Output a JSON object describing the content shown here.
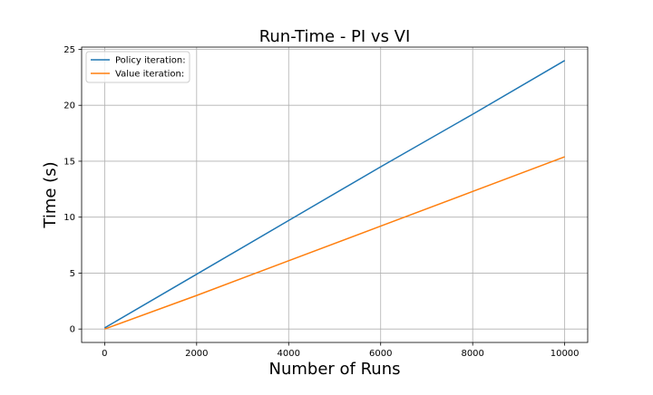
{
  "chart_data": {
    "type": "line",
    "title": "Run-Time - PI vs VI",
    "xlabel": "Number of Runs",
    "ylabel": "Time (s)",
    "xlim": [
      -500,
      10500
    ],
    "ylim": [
      -1.2,
      25.2
    ],
    "xticks": [
      0,
      2000,
      4000,
      6000,
      8000,
      10000
    ],
    "yticks": [
      0,
      5,
      10,
      15,
      20,
      25
    ],
    "grid": true,
    "legend_position": "top-left",
    "series": [
      {
        "name": "Policy iteration:",
        "color": "#1f77b4",
        "x": [
          0,
          2000,
          4000,
          6000,
          8000,
          10000
        ],
        "y": [
          0.1,
          4.9,
          9.7,
          14.5,
          19.2,
          24.0
        ]
      },
      {
        "name": "Value iteration:",
        "color": "#ff7f0e",
        "x": [
          0,
          2000,
          4000,
          6000,
          8000,
          10000
        ],
        "y": [
          0.0,
          3.0,
          6.1,
          9.2,
          12.3,
          15.4
        ]
      }
    ]
  }
}
